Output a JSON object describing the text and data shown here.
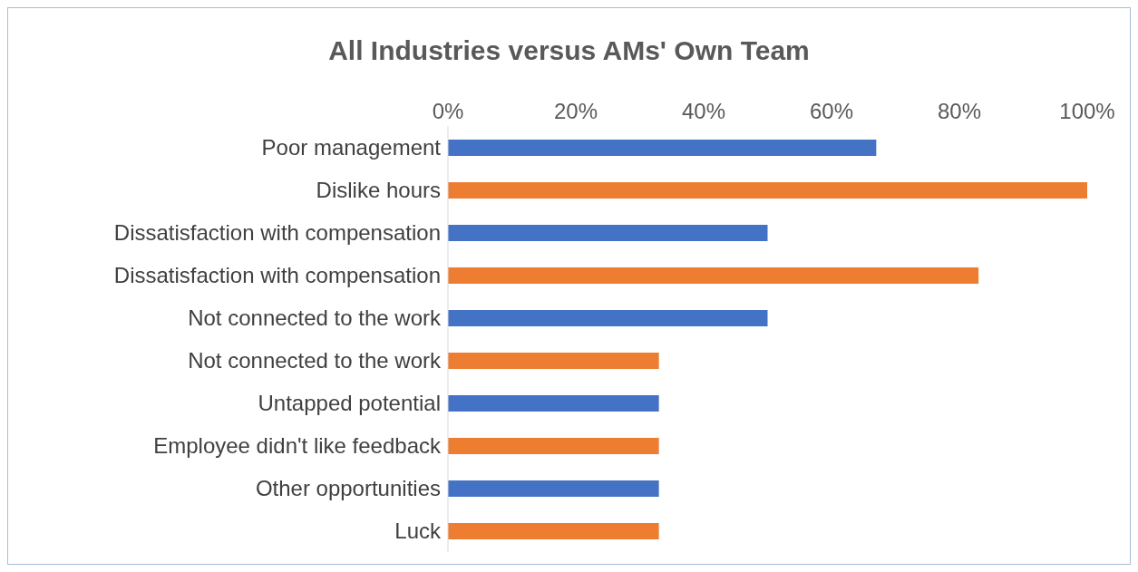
{
  "chart_data": {
    "type": "bar",
    "orientation": "horizontal",
    "title": "All Industries versus AMs' Own Team",
    "categories": [
      "Poor management",
      "Dislike hours",
      "Dissatisfaction with compensation",
      "Dissatisfaction with compensation",
      "Not connected to the work",
      "Not connected to the work",
      "Untapped potential",
      "Employee didn't like feedback",
      "Other opportunities",
      "Luck"
    ],
    "values": [
      67,
      100,
      50,
      83,
      50,
      33,
      33,
      33,
      33,
      33
    ],
    "colors": [
      "#4472c4",
      "#ed7d31",
      "#4472c4",
      "#ed7d31",
      "#4472c4",
      "#ed7d31",
      "#4472c4",
      "#ed7d31",
      "#4472c4",
      "#ed7d31"
    ],
    "xlim": [
      0,
      100
    ],
    "xticks": [
      {
        "value": 0,
        "label": "0%"
      },
      {
        "value": 20,
        "label": "20%"
      },
      {
        "value": 40,
        "label": "40%"
      },
      {
        "value": 60,
        "label": "60%"
      },
      {
        "value": 80,
        "label": "80%"
      },
      {
        "value": 100,
        "label": "100%"
      }
    ],
    "grid": false,
    "legend": false
  }
}
